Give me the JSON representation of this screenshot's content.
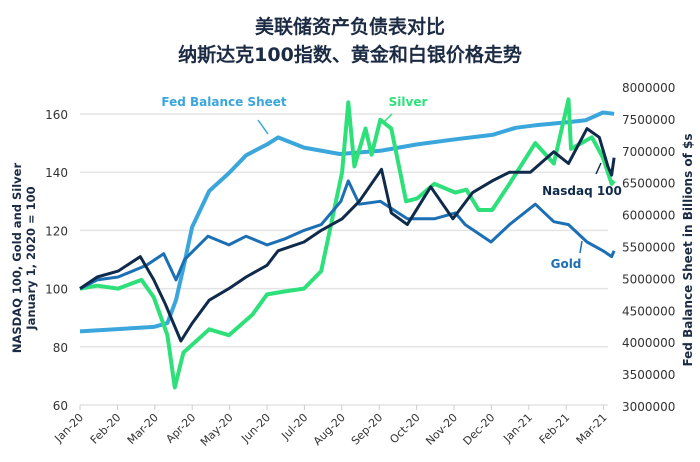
{
  "chart_data": {
    "type": "line",
    "title": "美联储资产负债表对比",
    "subtitle": "纳斯达克100指数、黄金和白银价格走势",
    "ylabel_left": "NASDAQ 100, Gold and Silver\nJanuary 1, 2020 = 100",
    "ylabel_right": "Fed Balance Sheet in Billions of $s",
    "ylim_left": [
      60,
      160
    ],
    "ylim_right": [
      3000000,
      8000000
    ],
    "yticks_left": [
      "60",
      "80",
      "100",
      "120",
      "140",
      "160"
    ],
    "yticks_right": [
      "3000000",
      "3500000",
      "4000000",
      "4500000",
      "5000000",
      "5500000",
      "6000000",
      "6500000",
      "7000000",
      "7500000",
      "8000000"
    ],
    "xticks": [
      "Jan-20",
      "Feb-20",
      "Mar-20",
      "Apr-20",
      "May-20",
      "Jun-20",
      "Jul-20",
      "Aug-20",
      "Sep-20",
      "Oct-20",
      "Nov-20",
      "Dec-20",
      "Jan-21",
      "Feb-21",
      "Mar-21"
    ],
    "grid": true,
    "series": [
      {
        "name": "Fed Balance Sheet",
        "axis": "right",
        "color": "#3aa6dc",
        "x": [
          "2020-01-01",
          "2020-03-01",
          "2020-03-12",
          "2020-03-19",
          "2020-03-26",
          "2020-04-01",
          "2020-04-15",
          "2020-05-01",
          "2020-05-15",
          "2020-06-01",
          "2020-06-10",
          "2020-07-01",
          "2020-07-30",
          "2020-09-01",
          "2020-10-01",
          "2020-11-01",
          "2020-12-01",
          "2020-12-20",
          "2021-01-05",
          "2021-02-01",
          "2021-02-15",
          "2021-03-01",
          "2021-03-10"
        ],
        "values": [
          4170000,
          4240000,
          4300000,
          4660000,
          5250000,
          5800000,
          6370000,
          6650000,
          6930000,
          7100000,
          7210000,
          7050000,
          6950000,
          7000000,
          7100000,
          7180000,
          7250000,
          7360000,
          7400000,
          7450000,
          7480000,
          7600000,
          7580000
        ]
      },
      {
        "name": "Nasdaq 100",
        "axis": "left",
        "color": "#0f2a4a",
        "x": [
          "2020-01-01",
          "2020-01-15",
          "2020-02-01",
          "2020-02-19",
          "2020-03-01",
          "2020-03-10",
          "2020-03-23",
          "2020-04-01",
          "2020-04-15",
          "2020-05-01",
          "2020-05-15",
          "2020-06-01",
          "2020-06-10",
          "2020-07-01",
          "2020-07-15",
          "2020-08-01",
          "2020-08-15",
          "2020-09-02",
          "2020-09-10",
          "2020-09-23",
          "2020-10-12",
          "2020-10-30",
          "2020-11-15",
          "2020-12-01",
          "2020-12-15",
          "2021-01-01",
          "2021-01-20",
          "2021-02-01",
          "2021-02-16",
          "2021-02-26",
          "2021-03-05",
          "2021-03-08",
          "2021-03-10"
        ],
        "values": [
          100,
          104,
          106,
          111,
          103,
          95,
          82,
          88,
          96,
          100,
          104,
          108,
          113,
          116,
          120,
          124,
          130,
          141,
          126,
          122,
          135,
          124,
          133,
          137,
          140,
          140,
          147,
          143,
          155,
          152,
          142,
          139,
          145
        ]
      },
      {
        "name": "Gold",
        "axis": "left",
        "color": "#1b6fb5",
        "x": [
          "2020-01-01",
          "2020-01-15",
          "2020-02-01",
          "2020-02-24",
          "2020-03-09",
          "2020-03-19",
          "2020-03-26",
          "2020-04-14",
          "2020-05-01",
          "2020-05-15",
          "2020-06-01",
          "2020-06-15",
          "2020-07-01",
          "2020-07-15",
          "2020-07-31",
          "2020-08-06",
          "2020-08-15",
          "2020-09-01",
          "2020-09-23",
          "2020-10-15",
          "2020-11-01",
          "2020-11-09",
          "2020-11-30",
          "2020-12-15",
          "2021-01-05",
          "2021-01-20",
          "2021-02-01",
          "2021-02-16",
          "2021-03-01",
          "2021-03-08",
          "2021-03-10"
        ],
        "values": [
          100,
          103,
          104,
          108,
          112,
          103,
          110,
          118,
          115,
          118,
          115,
          117,
          120,
          122,
          130,
          137,
          129,
          130,
          124,
          124,
          126,
          122,
          116,
          122,
          129,
          123,
          122,
          116,
          113,
          111,
          113
        ]
      },
      {
        "name": "Silver",
        "axis": "left",
        "color": "#2ee07a",
        "x": [
          "2020-01-01",
          "2020-01-15",
          "2020-02-01",
          "2020-02-20",
          "2020-03-01",
          "2020-03-12",
          "2020-03-18",
          "2020-03-25",
          "2020-04-15",
          "2020-05-01",
          "2020-05-20",
          "2020-06-01",
          "2020-06-15",
          "2020-07-01",
          "2020-07-15",
          "2020-07-22",
          "2020-08-01",
          "2020-08-06",
          "2020-08-11",
          "2020-08-20",
          "2020-08-25",
          "2020-09-01",
          "2020-09-10",
          "2020-09-22",
          "2020-10-01",
          "2020-10-15",
          "2020-11-01",
          "2020-11-10",
          "2020-11-20",
          "2020-12-01",
          "2020-12-15",
          "2021-01-05",
          "2021-01-20",
          "2021-02-01",
          "2021-02-03",
          "2021-02-20",
          "2021-03-01",
          "2021-03-08",
          "2021-03-10"
        ],
        "values": [
          100,
          101,
          100,
          103,
          97,
          84,
          66,
          78,
          86,
          84,
          91,
          98,
          99,
          100,
          106,
          120,
          140,
          164,
          142,
          155,
          146,
          158,
          155,
          130,
          131,
          136,
          133,
          134,
          127,
          127,
          136,
          150,
          143,
          165,
          148,
          152,
          145,
          136,
          137
        ]
      }
    ]
  }
}
